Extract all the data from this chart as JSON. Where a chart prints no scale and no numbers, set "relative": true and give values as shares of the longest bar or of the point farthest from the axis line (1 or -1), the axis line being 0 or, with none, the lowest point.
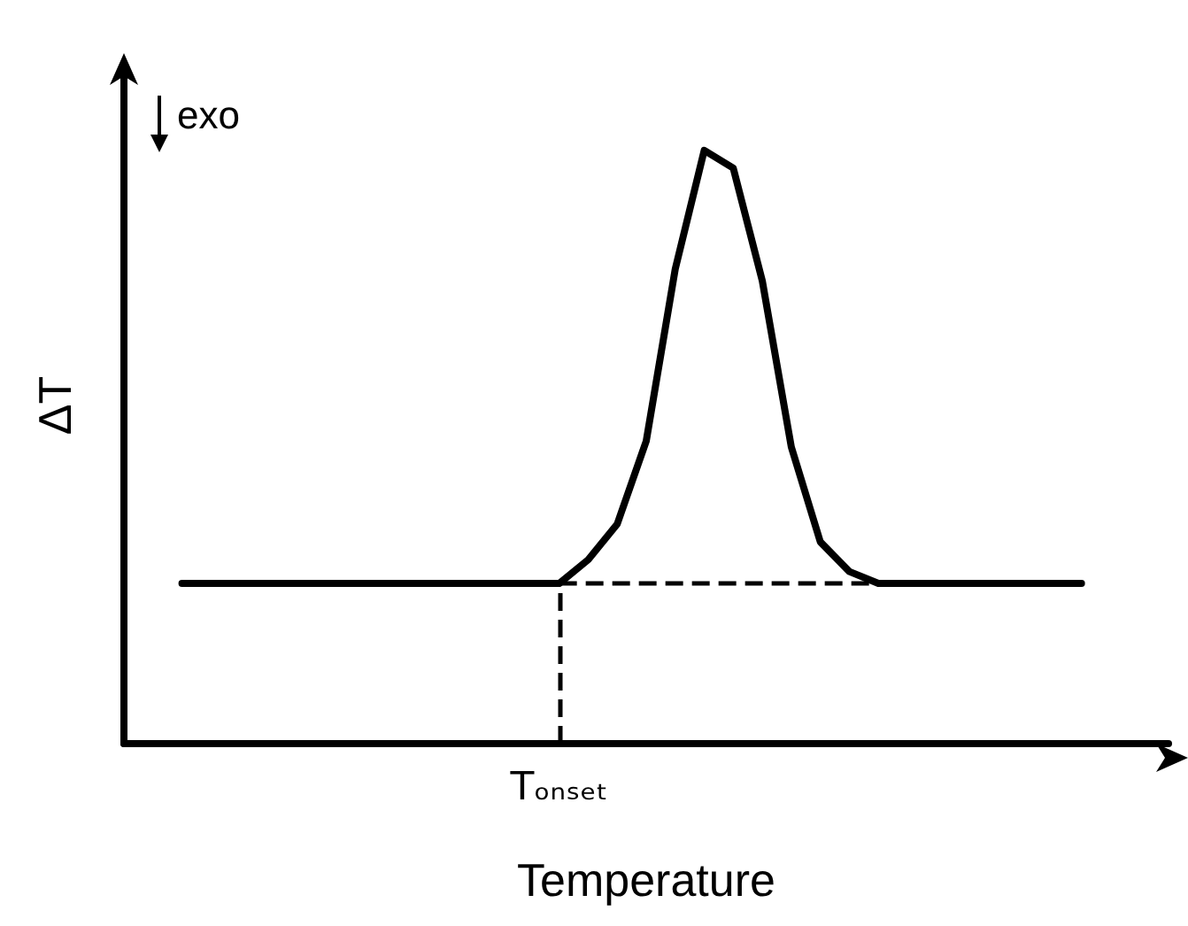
{
  "chart_data": {
    "type": "line",
    "relative": true,
    "ylabel": "ΔT",
    "xlabel": "Temperature",
    "annotations": [
      "exo"
    ],
    "marker": "none",
    "categories": [
      null,
      null,
      null,
      null,
      null,
      null,
      null,
      null,
      null,
      null,
      null,
      null,
      null,
      null,
      null,
      null,
      null,
      null,
      null,
      null,
      null,
      null,
      null,
      null,
      null,
      null,
      null,
      null,
      null,
      null,
      null,
      null
    ],
    "ref_lines": [
      {
        "axis": "y",
        "value": 0.27,
        "line_style": "dashed",
        "color": "#000000"
      },
      {
        "axis": "x",
        "label": "Tₒₙₛₑₜ",
        "line_style": "dashed",
        "color": "#000000"
      }
    ],
    "series": [
      {
        "color": "#000000",
        "line_style": "solid",
        "values": [
          0.27,
          0.27,
          0.27,
          0.27,
          0.27,
          0.27,
          0.27,
          0.27,
          0.27,
          0.27,
          0.27,
          0.27,
          0.27,
          0.27,
          0.31,
          0.37,
          0.51,
          0.8,
          1,
          0.97,
          0.78,
          0.5,
          0.34,
          0.29,
          0.27,
          0.27,
          0.27,
          0.27,
          0.27,
          0.27,
          0.27,
          0.27
        ]
      }
    ]
  }
}
